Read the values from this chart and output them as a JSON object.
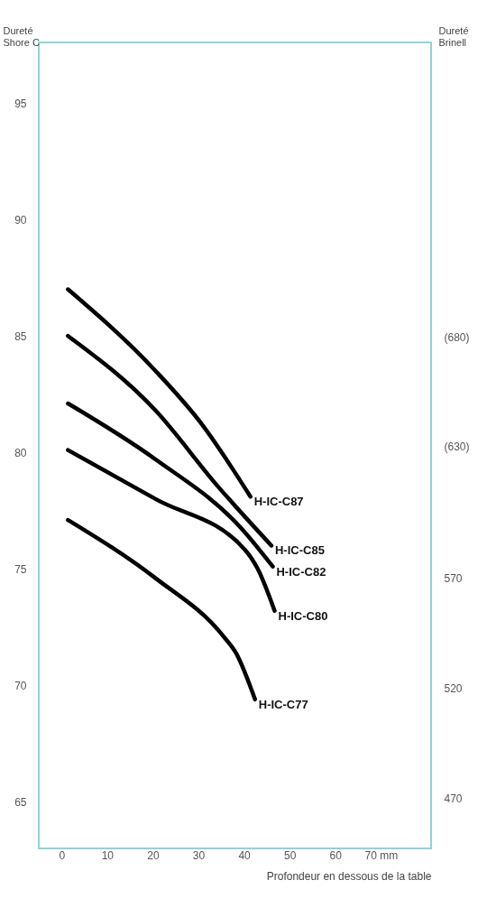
{
  "chart_data": {
    "type": "line",
    "xlabel": "Profondeur en dessous de la table",
    "ylabel": "Dureté\nShore C",
    "y2label": "Dureté\nBrinell",
    "xlim": [
      -5,
      81
    ],
    "xticks": [
      0,
      10,
      20,
      30,
      40,
      50,
      60,
      {
        "value": 70,
        "label": "70 mm"
      }
    ],
    "ylim": [
      63,
      97.6
    ],
    "yticks": [
      65,
      70,
      75,
      80,
      85,
      90,
      95
    ],
    "y2lim": [
      447,
      814
    ],
    "y2ticks": [
      470,
      520,
      570,
      {
        "value": 630,
        "label": "(630)"
      },
      {
        "value": 680,
        "label": "(680)"
      }
    ],
    "grid": false,
    "line_style": "solid",
    "marker": "none",
    "series": [
      {
        "name": "H-IC-C87",
        "color": "#000000",
        "x": [
          1.4,
          20.6,
          30.8,
          41.4
        ],
        "values": [
          87,
          83.5,
          81.2,
          78.1
        ]
      },
      {
        "name": "H-IC-C85",
        "color": "#000000",
        "x": [
          1.4,
          20.6,
          34,
          46
        ],
        "values": [
          85,
          81.8,
          78.6,
          76.0
        ]
      },
      {
        "name": "H-IC-C82",
        "color": "#000000",
        "x": [
          1.4,
          20.6,
          39.6,
          46.3
        ],
        "values": [
          82.1,
          79.7,
          76.7,
          75.1
        ]
      },
      {
        "name": "H-IC-C80",
        "color": "#000000",
        "x": [
          1.4,
          20.6,
          40.3,
          43,
          46.7
        ],
        "values": [
          80.1,
          78.0,
          75.8,
          75.0,
          73.2
        ]
      },
      {
        "name": "H-IC-C77",
        "color": "#000000",
        "x": [
          1.4,
          20.6,
          35.5,
          38.2,
          42.4
        ],
        "values": [
          77.1,
          74.6,
          72.1,
          71.4,
          69.4
        ]
      }
    ]
  }
}
